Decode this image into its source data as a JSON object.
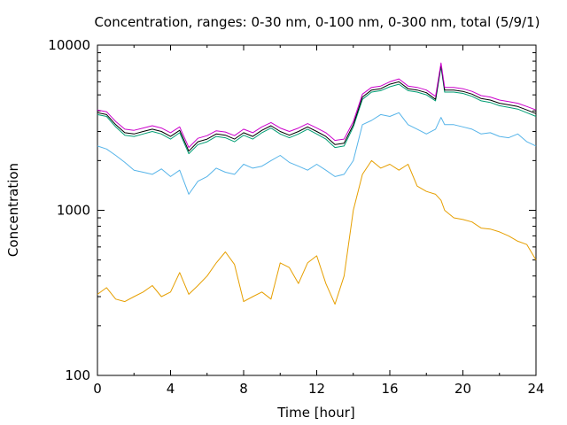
{
  "chart_data": {
    "type": "line",
    "title": "Concentration, ranges: 0-30 nm, 0-100 nm, 0-300 nm, total (5/9/1)",
    "xlabel": "Time [hour]",
    "ylabel": "Concentration",
    "xlim": [
      0,
      24
    ],
    "ylim": [
      100,
      10000
    ],
    "y_scale": "log",
    "grid": false,
    "legend": "none",
    "x_ticks": [
      "0",
      "4",
      "8",
      "12",
      "16",
      "20",
      "24"
    ],
    "x_tick_values": [
      0,
      4,
      8,
      12,
      16,
      20,
      24
    ],
    "y_ticks": [
      "100",
      "1000",
      "10000"
    ],
    "y_tick_values": [
      100,
      1000,
      10000
    ],
    "x": [
      0,
      0.5,
      1,
      1.5,
      2,
      2.5,
      3,
      3.5,
      4,
      4.5,
      5,
      5.5,
      6,
      6.5,
      7,
      7.5,
      8,
      8.5,
      9,
      9.5,
      10,
      10.5,
      11,
      11.5,
      12,
      12.5,
      13,
      13.5,
      14,
      14.5,
      15,
      15.5,
      16,
      16.5,
      17,
      17.5,
      18,
      18.5,
      18.8,
      19,
      19.5,
      20,
      20.5,
      21,
      21.5,
      22,
      22.5,
      23,
      23.5,
      24
    ],
    "series": [
      {
        "color": "#e69f00",
        "values": [
          310,
          340,
          290,
          280,
          300,
          320,
          350,
          300,
          320,
          420,
          310,
          350,
          400,
          480,
          560,
          470,
          280,
          300,
          320,
          290,
          480,
          450,
          360,
          480,
          530,
          360,
          270,
          400,
          1000,
          1650,
          2000,
          1800,
          1900,
          1750,
          1900,
          1400,
          1300,
          1250,
          1150,
          1000,
          900,
          880,
          850,
          780,
          770,
          740,
          700,
          650,
          620,
          500
        ]
      },
      {
        "color": "#56b4e9",
        "values": [
          2450,
          2350,
          2150,
          1950,
          1750,
          1700,
          1650,
          1780,
          1600,
          1750,
          1250,
          1500,
          1600,
          1800,
          1700,
          1650,
          1900,
          1800,
          1850,
          2000,
          2150,
          1950,
          1850,
          1750,
          1900,
          1750,
          1600,
          1650,
          2000,
          3300,
          3500,
          3800,
          3700,
          3900,
          3300,
          3100,
          2900,
          3100,
          3650,
          3300,
          3300,
          3200,
          3100,
          2900,
          2950,
          2800,
          2750,
          2900,
          2600,
          2450
        ]
      },
      {
        "color": "#009e73",
        "values": [
          3800,
          3700,
          3200,
          2850,
          2800,
          2900,
          3000,
          2900,
          2700,
          2950,
          2200,
          2500,
          2600,
          2800,
          2750,
          2600,
          2850,
          2700,
          2950,
          3150,
          2900,
          2750,
          2900,
          3100,
          2900,
          2700,
          2400,
          2450,
          3200,
          4700,
          5200,
          5300,
          5600,
          5800,
          5300,
          5200,
          5000,
          4600,
          7400,
          5200,
          5200,
          5100,
          4900,
          4600,
          4500,
          4300,
          4200,
          4100,
          3900,
          3700
        ]
      },
      {
        "color": "#000000",
        "values": [
          3900,
          3800,
          3300,
          2950,
          2900,
          3000,
          3100,
          3000,
          2800,
          3050,
          2280,
          2600,
          2700,
          2900,
          2850,
          2700,
          2950,
          2800,
          3050,
          3250,
          3000,
          2850,
          3000,
          3200,
          3000,
          2800,
          2500,
          2550,
          3300,
          4850,
          5350,
          5450,
          5800,
          6000,
          5450,
          5350,
          5150,
          4700,
          7600,
          5350,
          5350,
          5250,
          5050,
          4750,
          4650,
          4450,
          4350,
          4250,
          4050,
          3850
        ]
      },
      {
        "color": "#cc00cc",
        "values": [
          4050,
          3950,
          3450,
          3100,
          3050,
          3150,
          3250,
          3150,
          2950,
          3200,
          2400,
          2730,
          2830,
          3030,
          2980,
          2830,
          3100,
          2950,
          3200,
          3400,
          3150,
          3000,
          3150,
          3350,
          3150,
          2950,
          2650,
          2700,
          3450,
          5050,
          5550,
          5650,
          6000,
          6250,
          5650,
          5550,
          5350,
          4900,
          7800,
          5550,
          5550,
          5450,
          5250,
          4950,
          4850,
          4650,
          4550,
          4450,
          4250,
          4050
        ]
      }
    ]
  }
}
